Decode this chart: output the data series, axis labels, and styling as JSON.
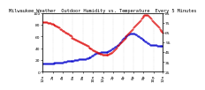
{
  "title": "Milwaukee Weather  Outdoor Humidity vs. Temperature  Every 5 Minutes",
  "background_color": "#ffffff",
  "plot_bg_color": "#ffffff",
  "grid_color": "#bbbbbb",
  "temperature_color": "#dd0000",
  "humidity_color": "#0000cc",
  "temp_x": [
    0,
    1,
    2,
    3,
    4,
    5,
    6,
    7,
    8,
    9,
    10,
    11,
    12,
    13,
    14,
    15,
    16,
    17,
    18,
    19,
    20,
    21,
    22,
    23,
    24,
    25,
    26,
    27,
    28,
    29,
    30,
    31,
    32,
    33,
    34,
    35,
    36,
    37,
    38,
    39,
    40,
    41,
    42,
    43,
    44,
    45,
    46,
    47,
    48,
    49,
    50,
    51,
    52,
    53,
    54,
    55,
    56,
    57,
    58,
    59,
    60,
    61,
    62,
    63,
    64,
    65,
    66,
    67,
    68,
    69,
    70,
    71,
    72,
    73,
    74,
    75,
    76,
    77,
    78,
    79,
    80,
    81,
    82,
    83,
    84,
    85,
    86,
    87,
    88,
    89,
    90,
    91,
    92,
    93,
    94,
    95,
    96,
    97,
    98,
    99,
    100,
    101,
    102,
    103,
    104,
    105,
    106,
    107,
    108,
    109,
    110,
    111,
    112,
    113,
    114,
    115,
    116,
    117,
    118,
    119,
    120,
    121,
    122,
    123,
    124,
    125,
    126,
    127,
    128,
    129,
    130,
    131,
    132,
    133,
    134,
    135,
    136,
    137,
    138,
    139,
    140,
    141,
    142,
    143
  ],
  "temp_y": [
    76,
    76,
    76,
    76,
    76,
    76,
    75,
    75,
    75,
    75,
    74,
    74,
    74,
    73,
    73,
    72,
    72,
    71,
    71,
    70,
    70,
    69,
    69,
    68,
    67,
    67,
    66,
    65,
    65,
    64,
    64,
    63,
    62,
    62,
    61,
    60,
    60,
    59,
    59,
    58,
    58,
    57,
    57,
    56,
    56,
    55,
    55,
    54,
    54,
    53,
    53,
    52,
    52,
    51,
    51,
    50,
    50,
    49,
    49,
    48,
    47,
    47,
    46,
    46,
    45,
    45,
    44,
    44,
    43,
    43,
    43,
    42,
    42,
    42,
    42,
    42,
    42,
    42,
    42,
    43,
    43,
    44,
    44,
    45,
    46,
    47,
    48,
    49,
    50,
    51,
    52,
    53,
    54,
    55,
    56,
    57,
    58,
    59,
    60,
    61,
    62,
    63,
    64,
    65,
    66,
    67,
    68,
    69,
    70,
    71,
    72,
    73,
    74,
    75,
    76,
    77,
    78,
    79,
    80,
    81,
    82,
    83,
    83,
    83,
    83,
    83,
    82,
    81,
    80,
    79,
    78,
    77,
    76,
    75,
    74,
    73,
    72,
    71,
    70,
    69,
    68,
    67,
    66,
    65
  ],
  "hum_x": [
    0,
    1,
    2,
    3,
    4,
    5,
    6,
    7,
    8,
    9,
    10,
    11,
    12,
    13,
    14,
    15,
    16,
    17,
    18,
    19,
    20,
    21,
    22,
    23,
    24,
    25,
    26,
    27,
    28,
    29,
    30,
    31,
    32,
    33,
    34,
    35,
    36,
    37,
    38,
    39,
    40,
    41,
    42,
    43,
    44,
    45,
    46,
    47,
    48,
    49,
    50,
    51,
    52,
    53,
    54,
    55,
    56,
    57,
    58,
    59,
    60,
    61,
    62,
    63,
    64,
    65,
    66,
    67,
    68,
    69,
    70,
    71,
    72,
    73,
    74,
    75,
    76,
    77,
    78,
    79,
    80,
    81,
    82,
    83,
    84,
    85,
    86,
    87,
    88,
    89,
    90,
    91,
    92,
    93,
    94,
    95,
    96,
    97,
    98,
    99,
    100,
    101,
    102,
    103,
    104,
    105,
    106,
    107,
    108,
    109,
    110,
    111,
    112,
    113,
    114,
    115,
    116,
    117,
    118,
    119,
    120,
    121,
    122,
    123,
    124,
    125,
    126,
    127,
    128,
    129,
    130,
    131,
    132,
    133,
    134,
    135,
    136,
    137,
    138,
    139,
    140,
    141,
    142,
    143
  ],
  "hum_y": [
    14,
    14,
    14,
    14,
    14,
    14,
    14,
    14,
    14,
    14,
    14,
    14,
    14,
    14,
    15,
    15,
    15,
    15,
    15,
    16,
    16,
    16,
    16,
    16,
    16,
    17,
    17,
    17,
    17,
    18,
    18,
    18,
    18,
    19,
    19,
    19,
    19,
    19,
    20,
    20,
    20,
    20,
    20,
    21,
    21,
    21,
    21,
    22,
    22,
    22,
    22,
    22,
    23,
    23,
    23,
    24,
    24,
    25,
    26,
    27,
    28,
    29,
    30,
    31,
    32,
    32,
    32,
    32,
    32,
    33,
    33,
    33,
    33,
    33,
    34,
    34,
    34,
    34,
    35,
    35,
    36,
    37,
    38,
    39,
    40,
    41,
    42,
    43,
    44,
    45,
    46,
    48,
    50,
    52,
    54,
    56,
    57,
    58,
    59,
    60,
    61,
    62,
    63,
    64,
    65,
    65,
    65,
    65,
    65,
    65,
    64,
    63,
    62,
    61,
    60,
    59,
    58,
    57,
    56,
    55,
    54,
    53,
    52,
    51,
    50,
    49,
    48,
    47,
    46,
    45,
    45,
    45,
    45,
    45,
    45,
    45,
    44,
    44,
    44,
    44,
    44,
    44,
    44,
    44
  ],
  "xlim": [
    0,
    143
  ],
  "left_ylim": [
    0,
    100
  ],
  "right_ylim": [
    25,
    85
  ],
  "left_yticks": [
    0,
    20,
    40,
    60,
    80,
    100
  ],
  "right_yticks": [
    25,
    35,
    45,
    55,
    65,
    75,
    85
  ],
  "right_yticklabels": [
    "25",
    "35",
    "45",
    "55",
    "65",
    "75",
    "85"
  ],
  "xtick_positions": [
    0,
    12,
    24,
    36,
    48,
    60,
    72,
    84,
    96,
    108,
    120,
    132,
    143
  ],
  "xtick_labels": [
    "12a",
    "2a",
    "4a",
    "6a",
    "8a",
    "10a",
    "12p",
    "2p",
    "4p",
    "6p",
    "8p",
    "10p",
    "12a"
  ],
  "marker_size": 0.8,
  "title_fontsize": 3.8,
  "tick_fontsize": 3.2
}
